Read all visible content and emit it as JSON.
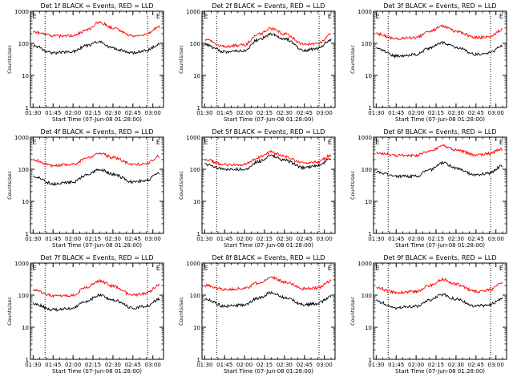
{
  "chart_data": [
    {
      "type": "line",
      "title": "Det 1f BLACK = Events, RED = LLD",
      "xlabel": "Start Time (07-Jun-08 01:28:00)",
      "ylabel": "Counts/sec",
      "x_ticks": [
        "01:30",
        "01:45",
        "02:00",
        "02:15",
        "02:30",
        "02:45",
        "03:00"
      ],
      "y_ticks": [
        "1",
        "10",
        "100",
        "1000"
      ],
      "ylim": [
        1,
        1000
      ],
      "y_scale": "log",
      "xlim": [
        "01:28",
        "03:08"
      ],
      "markers": [
        {
          "label": "E",
          "x": "01:31"
        },
        {
          "label": "E",
          "x": "03:04"
        }
      ],
      "dotted_lines_x": [
        "01:39",
        "02:56"
      ],
      "series": [
        {
          "name": "Events",
          "color": "#000000",
          "x": [
            "01:30",
            "01:45",
            "02:00",
            "02:10",
            "02:20",
            "02:30",
            "02:45",
            "02:55",
            "03:05"
          ],
          "y": [
            85,
            50,
            55,
            85,
            110,
            70,
            50,
            60,
            95
          ]
        },
        {
          "name": "LLD",
          "color": "#ff0000",
          "x": [
            "01:30",
            "01:45",
            "02:00",
            "02:10",
            "02:20",
            "02:30",
            "02:45",
            "02:55",
            "03:05"
          ],
          "y": [
            220,
            170,
            170,
            260,
            450,
            300,
            170,
            190,
            330
          ]
        }
      ]
    },
    {
      "type": "line",
      "title": "Det 2f BLACK = Events, RED = LLD",
      "xlabel": "Start Time (07-Jun-08 01:28:00)",
      "ylabel": "Counts/sec",
      "x_ticks": [
        "01:30",
        "01:45",
        "02:00",
        "02:15",
        "02:30",
        "02:45",
        "03:00"
      ],
      "y_ticks": [
        "1",
        "10",
        "100",
        "1000"
      ],
      "ylim": [
        1,
        1000
      ],
      "y_scale": "log",
      "xlim": [
        "01:28",
        "03:08"
      ],
      "markers": [
        {
          "label": "E",
          "x": "01:31"
        },
        {
          "label": "E",
          "x": "03:04"
        }
      ],
      "dotted_lines_x": [
        "01:39",
        "02:56"
      ],
      "series": [
        {
          "name": "Events",
          "color": "#000000",
          "x": [
            "01:30",
            "01:45",
            "02:00",
            "02:10",
            "02:20",
            "02:30",
            "02:45",
            "02:55",
            "03:05"
          ],
          "y": [
            90,
            55,
            60,
            130,
            190,
            140,
            60,
            70,
            130
          ]
        },
        {
          "name": "LLD",
          "color": "#ff0000",
          "x": [
            "01:30",
            "01:45",
            "02:00",
            "02:10",
            "02:20",
            "02:30",
            "02:45",
            "02:55",
            "03:05"
          ],
          "y": [
            130,
            80,
            90,
            190,
            280,
            200,
            90,
            100,
            190
          ]
        }
      ]
    },
    {
      "type": "line",
      "title": "Det 3f BLACK = Events, RED = LLD",
      "xlabel": "Start Time (07-Jun-08 01:28:00)",
      "ylabel": "Counts/sec",
      "x_ticks": [
        "01:30",
        "01:45",
        "02:00",
        "02:15",
        "02:30",
        "02:45",
        "03:00"
      ],
      "y_ticks": [
        "1",
        "10",
        "100",
        "1000"
      ],
      "ylim": [
        1,
        1000
      ],
      "y_scale": "log",
      "xlim": [
        "01:28",
        "03:08"
      ],
      "markers": [
        {
          "label": "E",
          "x": "01:31"
        },
        {
          "label": "E",
          "x": "03:04"
        }
      ],
      "dotted_lines_x": [
        "01:39",
        "02:56"
      ],
      "series": [
        {
          "name": "Events",
          "color": "#000000",
          "x": [
            "01:30",
            "01:45",
            "02:00",
            "02:10",
            "02:20",
            "02:30",
            "02:45",
            "02:55",
            "03:05"
          ],
          "y": [
            70,
            40,
            45,
            70,
            105,
            75,
            45,
            50,
            85
          ]
        },
        {
          "name": "LLD",
          "color": "#ff0000",
          "x": [
            "01:30",
            "01:45",
            "02:00",
            "02:10",
            "02:20",
            "02:30",
            "02:45",
            "02:55",
            "03:05"
          ],
          "y": [
            200,
            140,
            150,
            230,
            340,
            240,
            150,
            160,
            270
          ]
        }
      ]
    },
    {
      "type": "line",
      "title": "Det 4f BLACK = Events, RED = LLD",
      "xlabel": "Start Time (07-Jun-08 01:28:00)",
      "ylabel": "Counts/sec",
      "x_ticks": [
        "01:30",
        "01:45",
        "02:00",
        "02:15",
        "02:30",
        "02:45",
        "03:00"
      ],
      "y_ticks": [
        "1",
        "10",
        "100",
        "1000"
      ],
      "ylim": [
        1,
        1000
      ],
      "y_scale": "log",
      "xlim": [
        "01:28",
        "03:08"
      ],
      "markers": [
        {
          "label": "E",
          "x": "01:31"
        },
        {
          "label": "E",
          "x": "03:04"
        }
      ],
      "dotted_lines_x": [
        "01:39",
        "02:56"
      ],
      "series": [
        {
          "name": "Events",
          "color": "#000000",
          "x": [
            "01:30",
            "01:45",
            "02:00",
            "02:10",
            "02:20",
            "02:30",
            "02:45",
            "02:55",
            "03:05"
          ],
          "y": [
            60,
            35,
            40,
            65,
            100,
            70,
            40,
            45,
            75
          ]
        },
        {
          "name": "LLD",
          "color": "#ff0000",
          "x": [
            "01:30",
            "01:45",
            "02:00",
            "02:10",
            "02:20",
            "02:30",
            "02:45",
            "02:55",
            "03:05"
          ],
          "y": [
            190,
            130,
            140,
            220,
            320,
            230,
            140,
            150,
            260
          ]
        }
      ]
    },
    {
      "type": "line",
      "title": "Det 5f BLACK = Events, RED = LLD",
      "xlabel": "Start Time (07-Jun-08 01:28:00)",
      "ylabel": "Counts/sec",
      "x_ticks": [
        "01:30",
        "01:45",
        "02:00",
        "02:15",
        "02:30",
        "02:45",
        "03:00"
      ],
      "y_ticks": [
        "1",
        "10",
        "100",
        "1000"
      ],
      "ylim": [
        1,
        1000
      ],
      "y_scale": "log",
      "xlim": [
        "01:28",
        "03:08"
      ],
      "markers": [
        {
          "label": "E",
          "x": "01:31"
        },
        {
          "label": "E",
          "x": "03:04"
        }
      ],
      "dotted_lines_x": [
        "01:39",
        "02:56"
      ],
      "series": [
        {
          "name": "Events",
          "color": "#000000",
          "x": [
            "01:30",
            "01:45",
            "02:00",
            "02:10",
            "02:20",
            "02:30",
            "02:45",
            "02:55",
            "03:05"
          ],
          "y": [
            140,
            100,
            100,
            170,
            260,
            190,
            110,
            130,
            210
          ]
        },
        {
          "name": "LLD",
          "color": "#ff0000",
          "x": [
            "01:30",
            "01:45",
            "02:00",
            "02:10",
            "02:20",
            "02:30",
            "02:45",
            "02:55",
            "03:05"
          ],
          "y": [
            200,
            140,
            140,
            230,
            340,
            250,
            150,
            170,
            270
          ]
        }
      ]
    },
    {
      "type": "line",
      "title": "Det 6f BLACK = Events, RED = LLD",
      "xlabel": "Start Time (07-Jun-08 01:28:00)",
      "ylabel": "Counts/sec",
      "x_ticks": [
        "01:30",
        "01:45",
        "02:00",
        "02:15",
        "02:30",
        "02:45",
        "03:00"
      ],
      "y_ticks": [
        "1",
        "10",
        "100",
        "1000"
      ],
      "ylim": [
        1,
        1000
      ],
      "y_scale": "log",
      "xlim": [
        "01:28",
        "03:08"
      ],
      "markers": [
        {
          "label": "E",
          "x": "01:31"
        },
        {
          "label": "E",
          "x": "03:04"
        }
      ],
      "dotted_lines_x": [
        "01:39",
        "02:56"
      ],
      "series": [
        {
          "name": "Events",
          "color": "#000000",
          "x": [
            "01:30",
            "01:45",
            "02:00",
            "02:10",
            "02:20",
            "02:30",
            "02:45",
            "02:55",
            "03:05"
          ],
          "y": [
            80,
            60,
            60,
            95,
            160,
            110,
            65,
            75,
            130
          ]
        },
        {
          "name": "LLD",
          "color": "#ff0000",
          "x": [
            "01:30",
            "01:45",
            "02:00",
            "02:10",
            "02:20",
            "02:30",
            "02:45",
            "02:55",
            "03:05"
          ],
          "y": [
            330,
            270,
            270,
            370,
            530,
            400,
            280,
            310,
            430
          ]
        }
      ]
    },
    {
      "type": "line",
      "title": "Det 7f BLACK = Events, RED = LLD",
      "xlabel": "Start Time (07-Jun-08 01:28:00)",
      "ylabel": "Counts/sec",
      "x_ticks": [
        "01:30",
        "01:45",
        "02:00",
        "02:15",
        "02:30",
        "02:45",
        "03:00"
      ],
      "y_ticks": [
        "1",
        "10",
        "100",
        "1000"
      ],
      "ylim": [
        1,
        1000
      ],
      "y_scale": "log",
      "xlim": [
        "01:28",
        "03:08"
      ],
      "markers": [
        {
          "label": "E",
          "x": "01:31"
        },
        {
          "label": "E",
          "x": "03:04"
        }
      ],
      "dotted_lines_x": [
        "01:39",
        "02:56"
      ],
      "series": [
        {
          "name": "Events",
          "color": "#000000",
          "x": [
            "01:30",
            "01:45",
            "02:00",
            "02:10",
            "02:20",
            "02:30",
            "02:45",
            "02:55",
            "03:05"
          ],
          "y": [
            55,
            35,
            40,
            65,
            100,
            70,
            40,
            45,
            75
          ]
        },
        {
          "name": "LLD",
          "color": "#ff0000",
          "x": [
            "01:30",
            "01:45",
            "02:00",
            "02:10",
            "02:20",
            "02:30",
            "02:45",
            "02:55",
            "03:05"
          ],
          "y": [
            150,
            95,
            100,
            180,
            280,
            190,
            100,
            115,
            210
          ]
        }
      ]
    },
    {
      "type": "line",
      "title": "Det 8f BLACK = Events, RED = LLD",
      "xlabel": "Start Time (07-Jun-08 01:28:00)",
      "ylabel": "Counts/sec",
      "x_ticks": [
        "01:30",
        "01:45",
        "02:00",
        "02:15",
        "02:30",
        "02:45",
        "03:00"
      ],
      "y_ticks": [
        "1",
        "10",
        "100",
        "1000"
      ],
      "ylim": [
        1,
        1000
      ],
      "y_scale": "log",
      "xlim": [
        "01:28",
        "03:08"
      ],
      "markers": [
        {
          "label": "E",
          "x": "01:31"
        },
        {
          "label": "E",
          "x": "03:04"
        }
      ],
      "dotted_lines_x": [
        "01:39",
        "02:56"
      ],
      "series": [
        {
          "name": "Events",
          "color": "#000000",
          "x": [
            "01:30",
            "01:45",
            "02:00",
            "02:10",
            "02:20",
            "02:30",
            "02:45",
            "02:55",
            "03:05"
          ],
          "y": [
            75,
            45,
            50,
            80,
            120,
            85,
            50,
            55,
            90
          ]
        },
        {
          "name": "LLD",
          "color": "#ff0000",
          "x": [
            "01:30",
            "01:45",
            "02:00",
            "02:10",
            "02:20",
            "02:30",
            "02:45",
            "02:55",
            "03:05"
          ],
          "y": [
            200,
            150,
            160,
            240,
            360,
            260,
            160,
            170,
            280
          ]
        }
      ]
    },
    {
      "type": "line",
      "title": "Det 9f BLACK = Events, RED = LLD",
      "xlabel": "Start Time (07-Jun-08 01:28:00)",
      "ylabel": "Counts/sec",
      "x_ticks": [
        "01:30",
        "01:45",
        "02:00",
        "02:15",
        "02:30",
        "02:45",
        "03:00"
      ],
      "y_ticks": [
        "1",
        "10",
        "100",
        "1000"
      ],
      "ylim": [
        1,
        1000
      ],
      "y_scale": "log",
      "xlim": [
        "01:28",
        "03:08"
      ],
      "markers": [
        {
          "label": "E",
          "x": "01:31"
        },
        {
          "label": "E",
          "x": "03:04"
        }
      ],
      "dotted_lines_x": [
        "01:39",
        "02:56"
      ],
      "series": [
        {
          "name": "Events",
          "color": "#000000",
          "x": [
            "01:30",
            "01:45",
            "02:00",
            "02:10",
            "02:20",
            "02:30",
            "02:45",
            "02:55",
            "03:05"
          ],
          "y": [
            65,
            40,
            45,
            70,
            105,
            75,
            45,
            50,
            80
          ]
        },
        {
          "name": "LLD",
          "color": "#ff0000",
          "x": [
            "01:30",
            "01:45",
            "02:00",
            "02:10",
            "02:20",
            "02:30",
            "02:45",
            "02:55",
            "03:05"
          ],
          "y": [
            170,
            120,
            130,
            200,
            310,
            220,
            130,
            145,
            240
          ]
        }
      ]
    }
  ]
}
